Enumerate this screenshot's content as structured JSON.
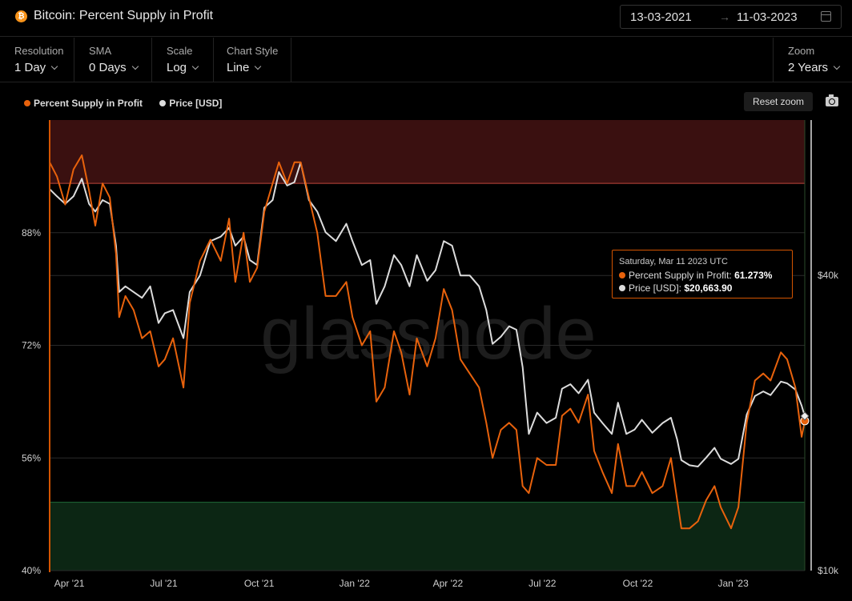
{
  "header": {
    "logo_glyph": "₿",
    "title": "Bitcoin: Percent Supply in Profit",
    "date_from": "13-03-2021",
    "date_arrow": "→",
    "date_to": "11-03-2023"
  },
  "controls": {
    "resolution": {
      "label": "Resolution",
      "value": "1 Day"
    },
    "sma": {
      "label": "SMA",
      "value": "0 Days"
    },
    "scale": {
      "label": "Scale",
      "value": "Log"
    },
    "chart_style": {
      "label": "Chart Style",
      "value": "Line"
    },
    "zoom": {
      "label": "Zoom",
      "value": "2 Years"
    }
  },
  "toolbar": {
    "reset_zoom": "Reset zoom"
  },
  "tooltip": {
    "date": "Saturday, Mar 11 2023 UTC",
    "row1_label": "Percent Supply in Profit:",
    "row1_value": "61.273%",
    "row2_label": "Price [USD]:",
    "row2_value": "$20,663.90"
  },
  "watermark": "glassnode",
  "colors": {
    "profit": "#e8620c",
    "price": "#dcdcdc",
    "upper_band": "#3a1010",
    "lower_band": "#0c2614",
    "accent": "#d35400"
  },
  "chart_data": {
    "type": "line",
    "title": "Bitcoin: Percent Supply in Profit",
    "x_range": [
      "2021-03-13",
      "2023-03-11"
    ],
    "x_ticks": [
      "Apr '21",
      "Jul '21",
      "Oct '21",
      "Jan '22",
      "Apr '22",
      "Jul '22",
      "Oct '22",
      "Jan '23"
    ],
    "y_left": {
      "label": "",
      "ticks": [
        "40%",
        "56%",
        "72%",
        "88%"
      ],
      "range": [
        40,
        104
      ]
    },
    "y_right": {
      "label": "",
      "scale": "log",
      "ticks": [
        "$10k",
        "$40k"
      ],
      "range": [
        10000,
        83000
      ]
    },
    "bands": [
      {
        "name": "upper",
        "from": 95,
        "to": 104
      },
      {
        "name": "lower",
        "from": 40,
        "to": 49.7
      }
    ],
    "legend_position": "top-left",
    "series": [
      {
        "name": "Percent Supply in Profit",
        "axis": "left",
        "points": [
          [
            "2021-03-13",
            98
          ],
          [
            "2021-03-20",
            96
          ],
          [
            "2021-03-28",
            92
          ],
          [
            "2021-04-05",
            97
          ],
          [
            "2021-04-13",
            99
          ],
          [
            "2021-04-20",
            94
          ],
          [
            "2021-04-26",
            89
          ],
          [
            "2021-05-03",
            95
          ],
          [
            "2021-05-10",
            93
          ],
          [
            "2021-05-16",
            85
          ],
          [
            "2021-05-19",
            76
          ],
          [
            "2021-05-25",
            79
          ],
          [
            "2021-06-02",
            77
          ],
          [
            "2021-06-10",
            73
          ],
          [
            "2021-06-18",
            74
          ],
          [
            "2021-06-26",
            69
          ],
          [
            "2021-07-02",
            70
          ],
          [
            "2021-07-10",
            73
          ],
          [
            "2021-07-20",
            66
          ],
          [
            "2021-07-26",
            78
          ],
          [
            "2021-08-05",
            84
          ],
          [
            "2021-08-15",
            87
          ],
          [
            "2021-08-25",
            84
          ],
          [
            "2021-09-02",
            90
          ],
          [
            "2021-09-08",
            81
          ],
          [
            "2021-09-16",
            88
          ],
          [
            "2021-09-22",
            81
          ],
          [
            "2021-09-29",
            83
          ],
          [
            "2021-10-06",
            91
          ],
          [
            "2021-10-14",
            95
          ],
          [
            "2021-10-20",
            98
          ],
          [
            "2021-10-28",
            95
          ],
          [
            "2021-11-04",
            98
          ],
          [
            "2021-11-10",
            98
          ],
          [
            "2021-11-18",
            93
          ],
          [
            "2021-11-26",
            88
          ],
          [
            "2021-12-04",
            79
          ],
          [
            "2021-12-14",
            79
          ],
          [
            "2021-12-24",
            81
          ],
          [
            "2021-12-30",
            76
          ],
          [
            "2022-01-08",
            72
          ],
          [
            "2022-01-16",
            74
          ],
          [
            "2022-01-22",
            64
          ],
          [
            "2022-01-30",
            66
          ],
          [
            "2022-02-08",
            74
          ],
          [
            "2022-02-15",
            71
          ],
          [
            "2022-02-23",
            65
          ],
          [
            "2022-03-02",
            73
          ],
          [
            "2022-03-12",
            69
          ],
          [
            "2022-03-20",
            73
          ],
          [
            "2022-03-28",
            80
          ],
          [
            "2022-04-05",
            77
          ],
          [
            "2022-04-13",
            70
          ],
          [
            "2022-04-22",
            68
          ],
          [
            "2022-05-01",
            66
          ],
          [
            "2022-05-08",
            61
          ],
          [
            "2022-05-14",
            56
          ],
          [
            "2022-05-22",
            60
          ],
          [
            "2022-05-30",
            61
          ],
          [
            "2022-06-06",
            60
          ],
          [
            "2022-06-12",
            52
          ],
          [
            "2022-06-18",
            51
          ],
          [
            "2022-06-26",
            56
          ],
          [
            "2022-07-05",
            55
          ],
          [
            "2022-07-14",
            55
          ],
          [
            "2022-07-20",
            62
          ],
          [
            "2022-07-28",
            63
          ],
          [
            "2022-08-05",
            61
          ],
          [
            "2022-08-14",
            65
          ],
          [
            "2022-08-20",
            57
          ],
          [
            "2022-08-28",
            54
          ],
          [
            "2022-09-06",
            51
          ],
          [
            "2022-09-12",
            58
          ],
          [
            "2022-09-20",
            52
          ],
          [
            "2022-09-28",
            52
          ],
          [
            "2022-10-05",
            54
          ],
          [
            "2022-10-15",
            51
          ],
          [
            "2022-10-25",
            52
          ],
          [
            "2022-11-02",
            56
          ],
          [
            "2022-11-08",
            50
          ],
          [
            "2022-11-12",
            46
          ],
          [
            "2022-11-20",
            46
          ],
          [
            "2022-11-28",
            47
          ],
          [
            "2022-12-06",
            50
          ],
          [
            "2022-12-14",
            52
          ],
          [
            "2022-12-20",
            49
          ],
          [
            "2022-12-30",
            46
          ],
          [
            "2023-01-06",
            49
          ],
          [
            "2023-01-14",
            61
          ],
          [
            "2023-01-22",
            67
          ],
          [
            "2023-01-30",
            68
          ],
          [
            "2023-02-06",
            67
          ],
          [
            "2023-02-16",
            71
          ],
          [
            "2023-02-22",
            70
          ],
          [
            "2023-03-02",
            66
          ],
          [
            "2023-03-08",
            59
          ],
          [
            "2023-03-11",
            61.273
          ]
        ]
      },
      {
        "name": "Price [USD]",
        "axis": "right",
        "points": [
          [
            "2021-03-13",
            60000
          ],
          [
            "2021-03-20",
            58000
          ],
          [
            "2021-03-28",
            56000
          ],
          [
            "2021-04-05",
            58000
          ],
          [
            "2021-04-13",
            63000
          ],
          [
            "2021-04-20",
            56000
          ],
          [
            "2021-04-26",
            54000
          ],
          [
            "2021-05-03",
            57000
          ],
          [
            "2021-05-10",
            56000
          ],
          [
            "2021-05-16",
            46000
          ],
          [
            "2021-05-19",
            37000
          ],
          [
            "2021-05-25",
            38000
          ],
          [
            "2021-06-02",
            37000
          ],
          [
            "2021-06-10",
            36000
          ],
          [
            "2021-06-18",
            38000
          ],
          [
            "2021-06-26",
            32000
          ],
          [
            "2021-07-02",
            33500
          ],
          [
            "2021-07-10",
            34000
          ],
          [
            "2021-07-20",
            29800
          ],
          [
            "2021-07-26",
            37000
          ],
          [
            "2021-08-05",
            40000
          ],
          [
            "2021-08-15",
            47000
          ],
          [
            "2021-08-25",
            48000
          ],
          [
            "2021-09-02",
            50000
          ],
          [
            "2021-09-08",
            46000
          ],
          [
            "2021-09-16",
            48000
          ],
          [
            "2021-09-22",
            43000
          ],
          [
            "2021-09-29",
            42000
          ],
          [
            "2021-10-06",
            55000
          ],
          [
            "2021-10-14",
            57000
          ],
          [
            "2021-10-20",
            65000
          ],
          [
            "2021-10-28",
            61000
          ],
          [
            "2021-11-04",
            62000
          ],
          [
            "2021-11-10",
            68000
          ],
          [
            "2021-11-18",
            57000
          ],
          [
            "2021-11-26",
            54000
          ],
          [
            "2021-12-04",
            49000
          ],
          [
            "2021-12-14",
            47000
          ],
          [
            "2021-12-24",
            51000
          ],
          [
            "2021-12-30",
            47000
          ],
          [
            "2022-01-08",
            42000
          ],
          [
            "2022-01-16",
            43000
          ],
          [
            "2022-01-22",
            35000
          ],
          [
            "2022-01-30",
            38000
          ],
          [
            "2022-02-08",
            44000
          ],
          [
            "2022-02-15",
            42000
          ],
          [
            "2022-02-23",
            38000
          ],
          [
            "2022-03-02",
            44000
          ],
          [
            "2022-03-12",
            39000
          ],
          [
            "2022-03-20",
            41000
          ],
          [
            "2022-03-28",
            47000
          ],
          [
            "2022-04-05",
            46000
          ],
          [
            "2022-04-13",
            40000
          ],
          [
            "2022-04-22",
            40000
          ],
          [
            "2022-05-01",
            38000
          ],
          [
            "2022-05-08",
            34000
          ],
          [
            "2022-05-14",
            29000
          ],
          [
            "2022-05-22",
            30000
          ],
          [
            "2022-05-30",
            31500
          ],
          [
            "2022-06-06",
            31000
          ],
          [
            "2022-06-12",
            26000
          ],
          [
            "2022-06-18",
            19000
          ],
          [
            "2022-06-26",
            21000
          ],
          [
            "2022-07-05",
            20000
          ],
          [
            "2022-07-14",
            20500
          ],
          [
            "2022-07-20",
            23500
          ],
          [
            "2022-07-28",
            24000
          ],
          [
            "2022-08-05",
            23000
          ],
          [
            "2022-08-14",
            24500
          ],
          [
            "2022-08-20",
            21000
          ],
          [
            "2022-08-28",
            20000
          ],
          [
            "2022-09-06",
            19000
          ],
          [
            "2022-09-12",
            22000
          ],
          [
            "2022-09-20",
            19000
          ],
          [
            "2022-09-28",
            19400
          ],
          [
            "2022-10-05",
            20300
          ],
          [
            "2022-10-15",
            19100
          ],
          [
            "2022-10-25",
            20000
          ],
          [
            "2022-11-02",
            20500
          ],
          [
            "2022-11-08",
            18500
          ],
          [
            "2022-11-12",
            16800
          ],
          [
            "2022-11-20",
            16400
          ],
          [
            "2022-11-28",
            16300
          ],
          [
            "2022-12-06",
            17000
          ],
          [
            "2022-12-14",
            17800
          ],
          [
            "2022-12-20",
            16900
          ],
          [
            "2022-12-30",
            16500
          ],
          [
            "2023-01-06",
            16900
          ],
          [
            "2023-01-14",
            20800
          ],
          [
            "2023-01-22",
            22700
          ],
          [
            "2023-01-30",
            23200
          ],
          [
            "2023-02-06",
            22800
          ],
          [
            "2023-02-16",
            24300
          ],
          [
            "2023-02-22",
            24100
          ],
          [
            "2023-03-02",
            23400
          ],
          [
            "2023-03-08",
            21700
          ],
          [
            "2023-03-11",
            20663.9
          ]
        ]
      }
    ],
    "hover_date": "2023-03-11"
  }
}
